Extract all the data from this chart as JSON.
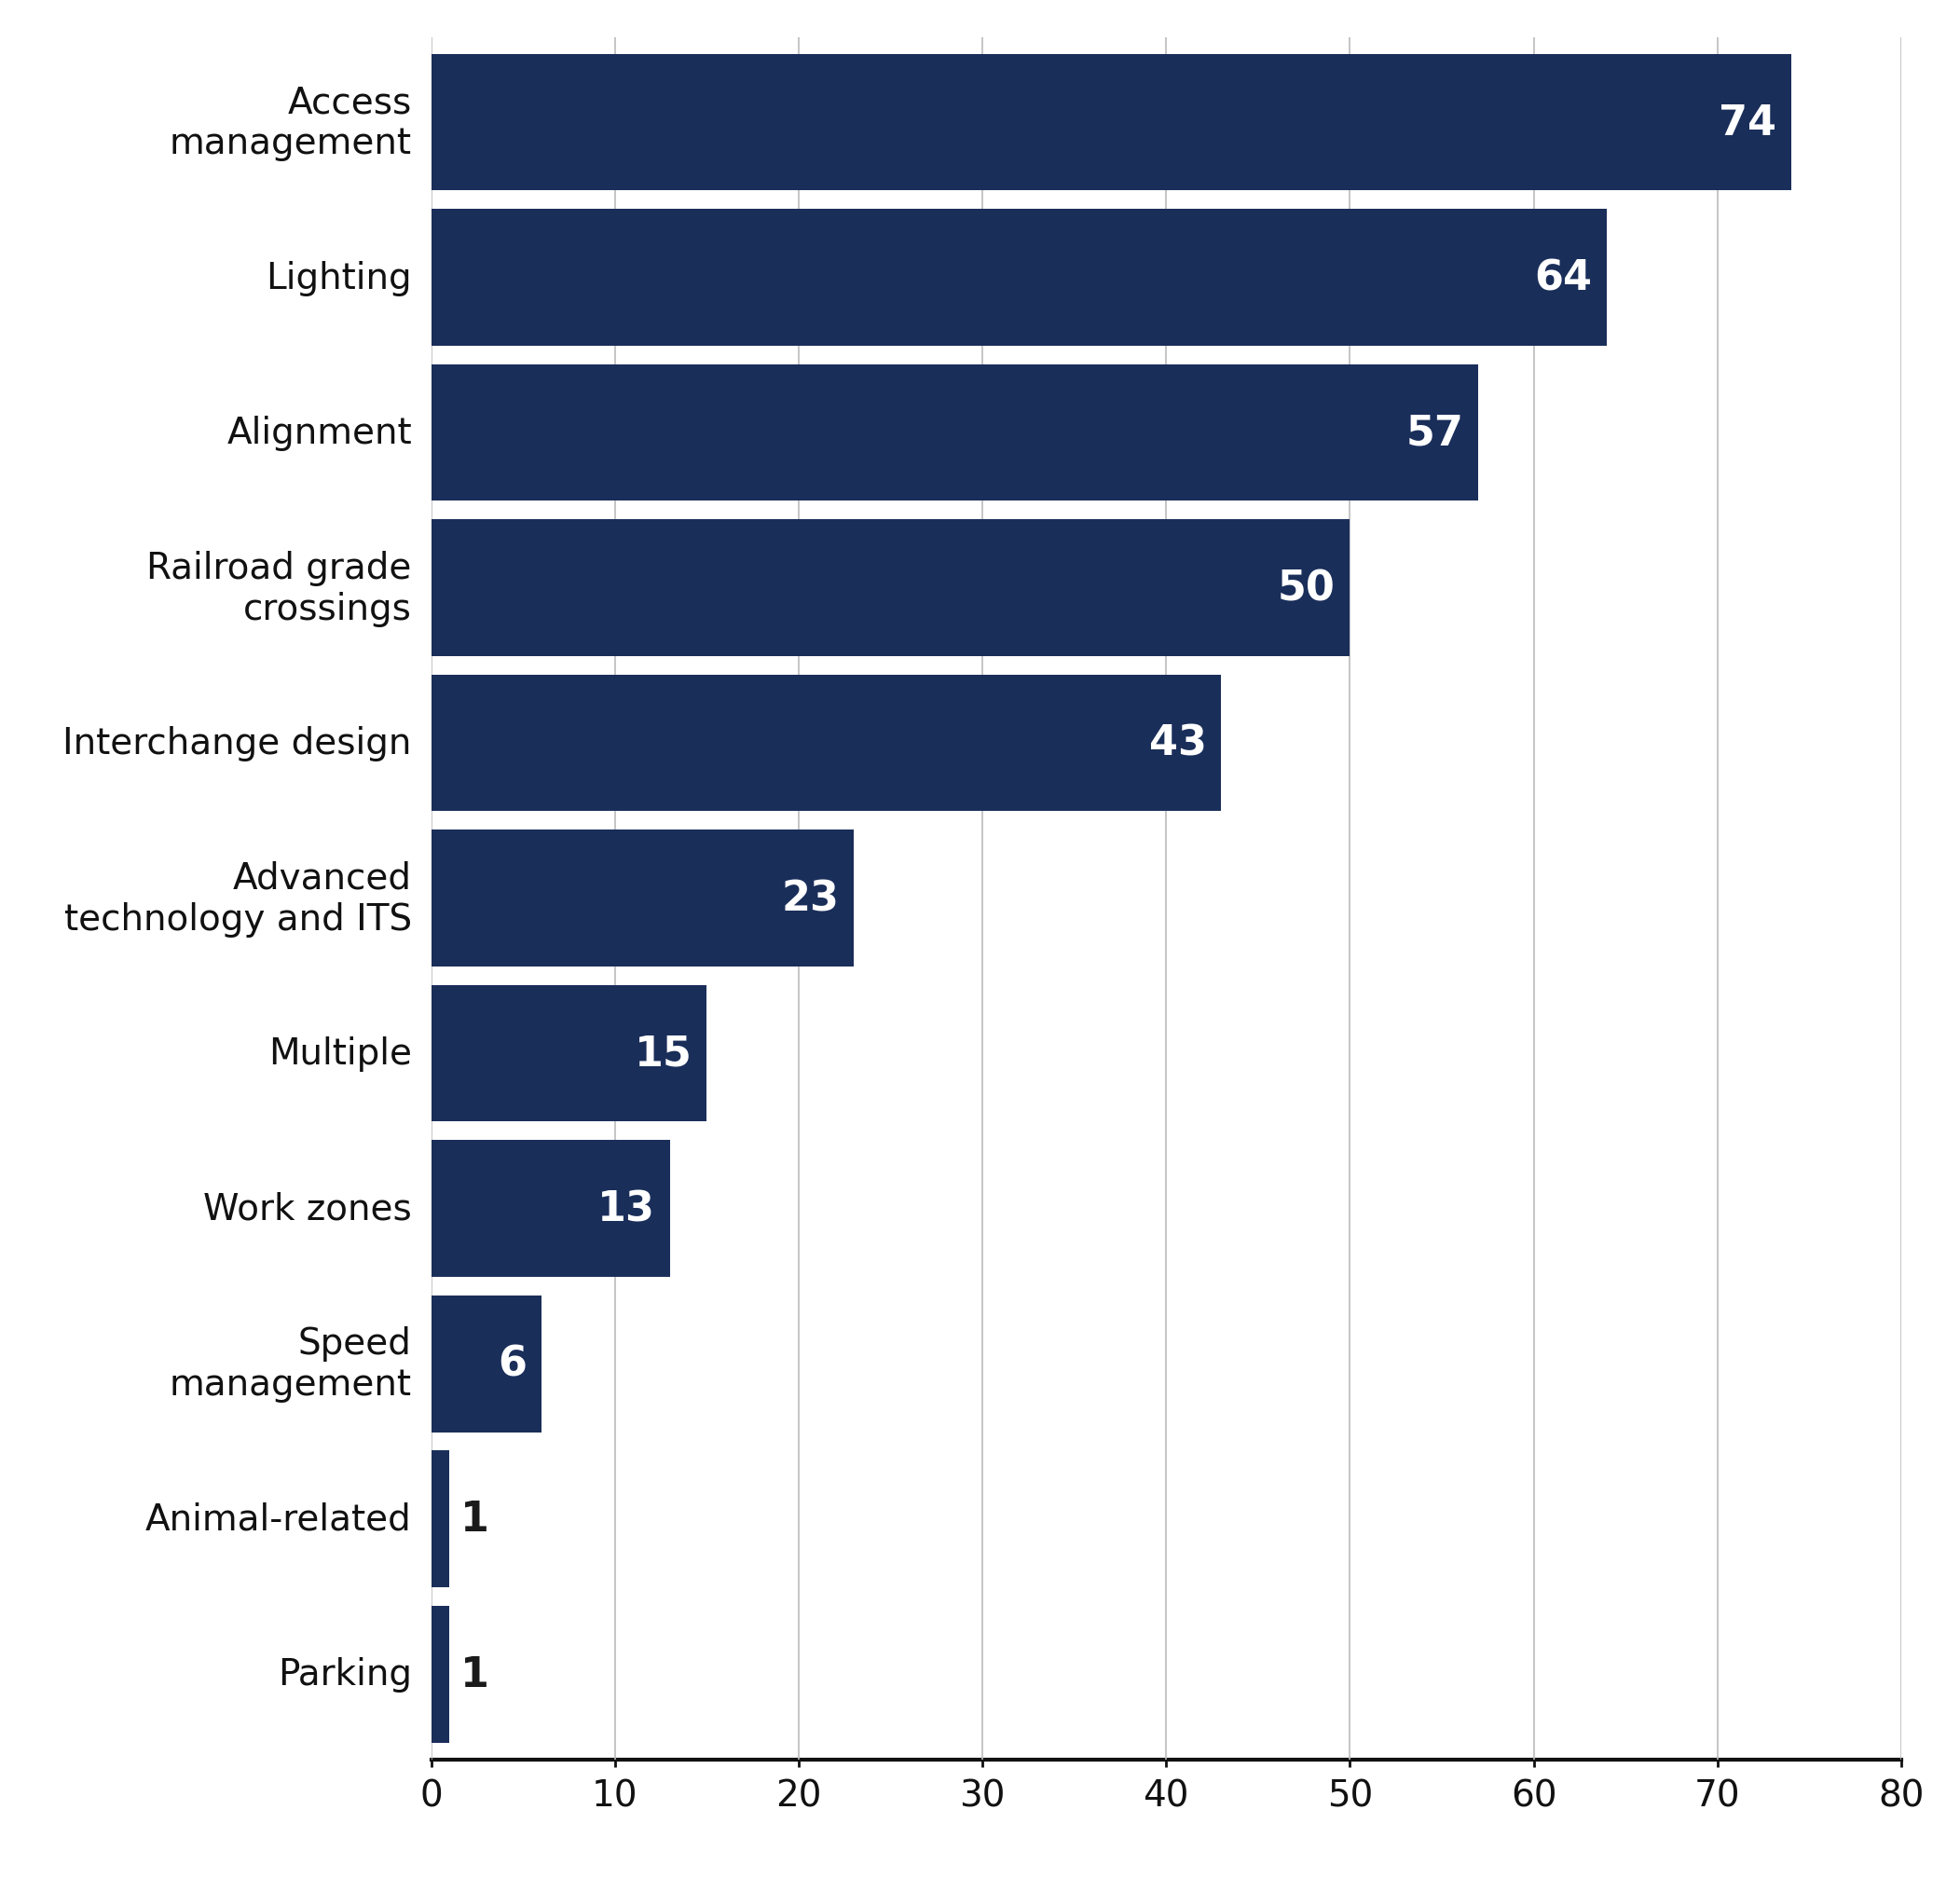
{
  "categories": [
    "Access\nmanagement",
    "Lighting",
    "Alignment",
    "Railroad grade\ncrossings",
    "Interchange design",
    "Advanced\ntechnology and ITS",
    "Multiple",
    "Work zones",
    "Speed\nmanagement",
    "Animal-related",
    "Parking"
  ],
  "values": [
    74,
    64,
    57,
    50,
    43,
    23,
    15,
    13,
    6,
    1,
    1
  ],
  "bar_color": "#1a2e5a",
  "label_color_inside": "#ffffff",
  "label_color_outside": "#1a1a1a",
  "value_fontsize": 32,
  "tick_fontsize": 28,
  "category_fontsize": 28,
  "xlim": [
    0,
    80
  ],
  "xticks": [
    0,
    10,
    20,
    30,
    40,
    50,
    60,
    70,
    80
  ],
  "background_color": "#ffffff",
  "bar_height": 0.88,
  "grid_color": "#bbbbbb",
  "axis_color": "#111111",
  "inside_threshold": 4
}
